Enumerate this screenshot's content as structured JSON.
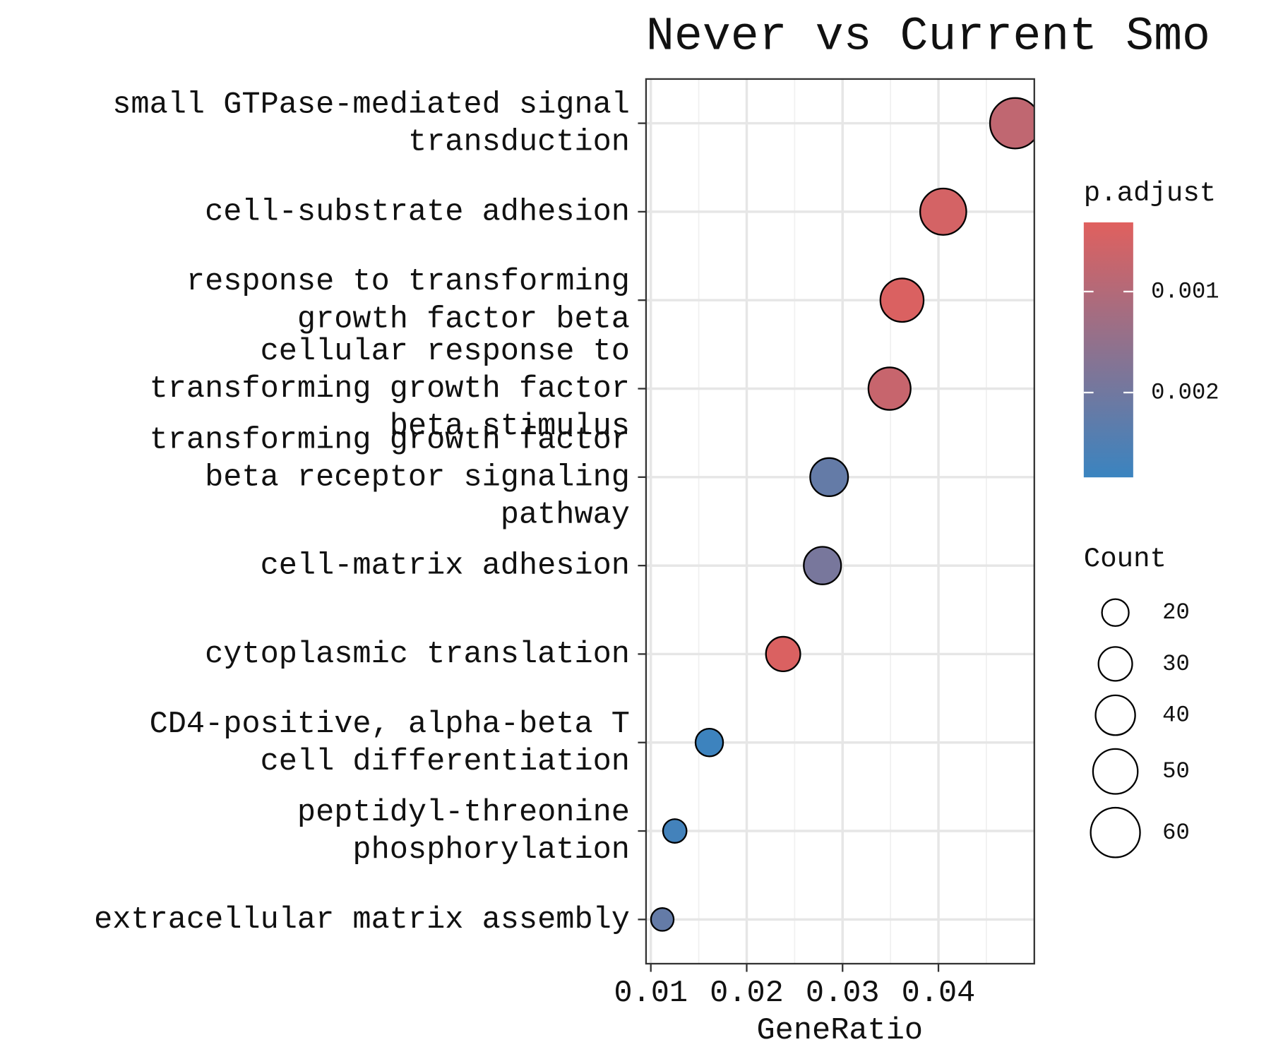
{
  "chart_data": {
    "type": "dot",
    "title": "Never vs Current Smo",
    "xlabel": "GeneRatio",
    "categories": [
      [
        "small GTPase-mediated signal",
        "transduction"
      ],
      [
        "cell-substrate adhesion"
      ],
      [
        "response to transforming",
        "growth factor beta"
      ],
      [
        "cellular response to",
        "transforming growth factor",
        "beta stimulus"
      ],
      [
        "transforming growth factor",
        "beta receptor signaling",
        "pathway"
      ],
      [
        "cell-matrix adhesion"
      ],
      [
        "cytoplasmic translation"
      ],
      [
        "CD4-positive, alpha-beta T",
        "cell differentiation"
      ],
      [
        "peptidyl-threonine",
        "phosphorylation"
      ],
      [
        "extracellular matrix assembly"
      ]
    ],
    "x": [
      0.048,
      0.0405,
      0.0362,
      0.0349,
      0.0286,
      0.0279,
      0.0238,
      0.0161,
      0.0125,
      0.0112
    ],
    "count": [
      62,
      53,
      47,
      45,
      37,
      36,
      31,
      21,
      16,
      15
    ],
    "p_adjust": [
      0.0008,
      0.0005,
      0.0004,
      0.0007,
      0.0022,
      0.0019,
      0.0004,
      0.0028,
      0.0027,
      0.0022
    ],
    "xlim": [
      0.0095,
      0.05
    ],
    "xticks": [
      0.01,
      0.02,
      0.03,
      0.04
    ],
    "grid": true,
    "color_legend": {
      "title": "p.adjust",
      "lim": [
        0.000315,
        0.00284
      ],
      "ticks": [
        0.001,
        0.002
      ],
      "low_color": "#e0605e",
      "high_color": "#3a84c0"
    },
    "size_legend": {
      "title": "Count",
      "values": [
        20,
        30,
        40,
        50,
        60
      ]
    }
  }
}
